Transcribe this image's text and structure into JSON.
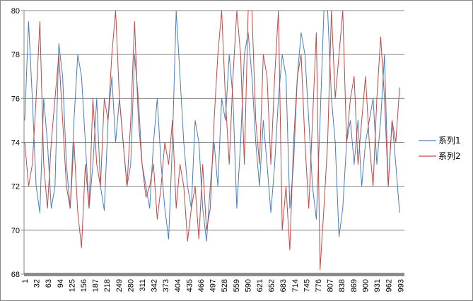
{
  "chart_data": {
    "type": "line",
    "title": "",
    "xlabel": "",
    "ylabel": "",
    "ylim": [
      68,
      80
    ],
    "yticks": [
      68,
      70,
      72,
      74,
      76,
      78,
      80
    ],
    "grid": true,
    "legend_position": "right",
    "x_tick_labels": [
      "1",
      "32",
      "63",
      "94",
      "125",
      "156",
      "187",
      "218",
      "249",
      "280",
      "311",
      "342",
      "373",
      "404",
      "435",
      "466",
      "497",
      "528",
      "559",
      "590",
      "621",
      "652",
      "683",
      "714",
      "745",
      "776",
      "807",
      "838",
      "869",
      "900",
      "931",
      "962",
      "993"
    ],
    "x_range": [
      1,
      1000
    ],
    "x_sample_step": 10,
    "series": [
      {
        "name": "系列1",
        "color": "#4a7ebb",
        "values": [
          75,
          79.5,
          76,
          72,
          70.8,
          76,
          74,
          71,
          72,
          78.5,
          77,
          73,
          71,
          75,
          78,
          77,
          74,
          71,
          73,
          76,
          72,
          70.9,
          75,
          77,
          74,
          76,
          74,
          72,
          73,
          78,
          76,
          73,
          72,
          71,
          74,
          76,
          73,
          71,
          69.6,
          74,
          80,
          77,
          74,
          72,
          71,
          75,
          74,
          71,
          69.5,
          72,
          74,
          72,
          76,
          75,
          78,
          76,
          71,
          74,
          78,
          79,
          77,
          74,
          72,
          75,
          73,
          70.8,
          73,
          76,
          78,
          77,
          71,
          73,
          77,
          79,
          78,
          75,
          72,
          70.5,
          75,
          80,
          80,
          76,
          74,
          69.7,
          71,
          74,
          75,
          73,
          75,
          72,
          74,
          75,
          76,
          73,
          75,
          78,
          72,
          75,
          73,
          70.8
        ]
      },
      {
        "name": "系列2",
        "color": "#be4b48",
        "values": [
          74,
          72,
          73,
          76,
          79.5,
          73,
          71,
          74,
          76,
          78,
          75,
          72,
          71,
          74,
          70.8,
          69.2,
          73,
          71,
          76,
          73,
          72,
          76,
          75,
          78,
          80,
          76,
          74,
          72,
          75,
          79.5,
          75,
          73,
          71.5,
          72,
          73,
          70.5,
          72,
          74,
          73,
          75,
          71,
          73,
          72,
          69.5,
          71,
          72,
          69.6,
          73,
          70,
          71,
          75,
          78,
          80,
          76,
          73,
          77,
          80,
          78,
          73,
          80,
          80,
          75,
          73,
          78,
          77,
          73,
          77,
          80,
          70,
          72,
          69.1,
          74,
          77,
          78,
          74,
          71,
          75,
          79,
          68.2,
          71,
          74,
          80,
          76,
          78,
          80,
          74,
          76,
          77,
          73,
          75,
          77,
          74,
          72,
          76,
          78.8,
          76,
          72,
          75,
          74,
          76.5
        ]
      }
    ]
  }
}
